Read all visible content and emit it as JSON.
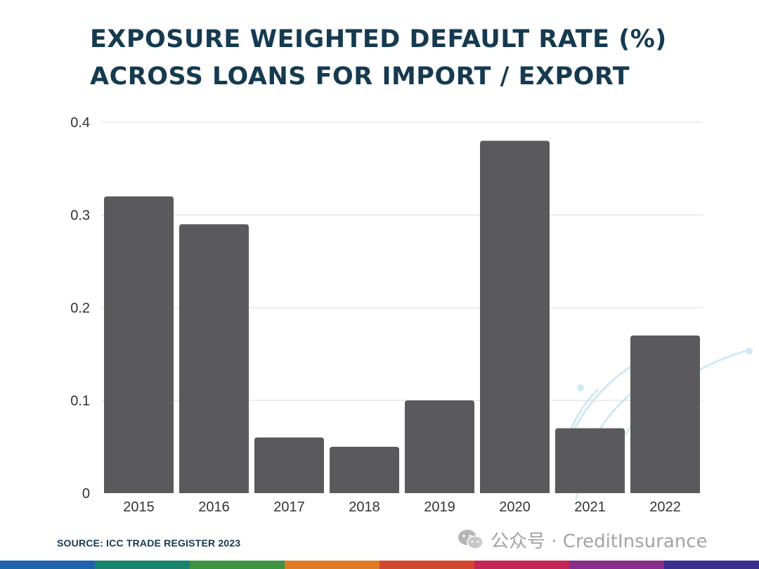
{
  "title_lines": [
    "EXPOSURE WEIGHTED DEFAULT RATE (%)",
    "ACROSS LOANS FOR IMPORT / EXPORT"
  ],
  "source": "SOURCE: ICC TRADE REGISTER 2023",
  "watermark": "公众号 · CreditInsurance",
  "watermark_icon": "wechat-icon",
  "colors": {
    "bar": "#5a5a5c",
    "title": "#163a4f",
    "grid": "#d9d9d9",
    "stripe": [
      "#1f63b0",
      "#16846f",
      "#3d9444",
      "#e07b24",
      "#d2472e",
      "#c4265a",
      "#8a2e8c",
      "#3b2f8f"
    ]
  },
  "chart_data": {
    "type": "bar",
    "categories": [
      "2015",
      "2016",
      "2017",
      "2018",
      "2019",
      "2020",
      "2021",
      "2022"
    ],
    "values": [
      0.32,
      0.29,
      0.06,
      0.05,
      0.1,
      0.38,
      0.07,
      0.17
    ],
    "yticks": [
      "0",
      "0.1",
      "0.2",
      "0.3",
      "0.4"
    ],
    "ylim": [
      0,
      0.4
    ],
    "grid": true,
    "legend": "none"
  }
}
